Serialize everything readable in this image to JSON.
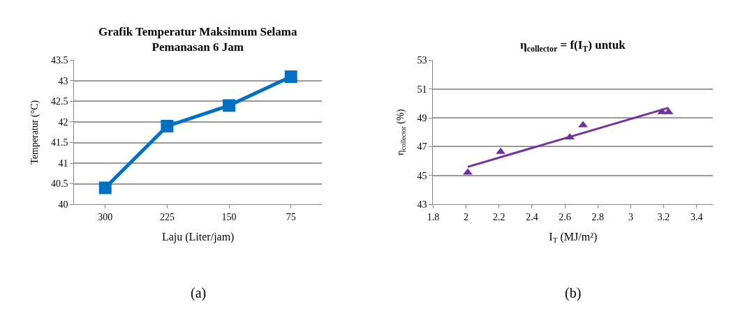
{
  "chart_data": [
    {
      "type": "line",
      "title": "Grafik Temperatur Maksimum Selama\nPemanasan 6 Jam",
      "xlabel": "Laju (Liter/jam)",
      "ylabel": "Temperatur (°C)",
      "categories": [
        "300",
        "225",
        "150",
        "75"
      ],
      "series": [
        {
          "color": "#0070c0",
          "values": [
            40.4,
            41.9,
            42.4,
            43.1
          ]
        }
      ],
      "ylim": [
        40,
        43.5
      ],
      "yticks": [
        40,
        40.5,
        41,
        41.5,
        42,
        42.5,
        43,
        43.5
      ],
      "grid": "y",
      "marker": "square",
      "line_style": "solid",
      "annotations": [
        "(a)"
      ]
    },
    {
      "type": "scatter",
      "title": "η$_{collector}$ = f(I$_{T}$) untuk",
      "xlabel": "I$_{T}$ (MJ/m²)",
      "ylabel": "η$_{collector}$ (%)",
      "series": [
        {
          "type": "scatter",
          "color": "#7030a0",
          "x": [
            2.01,
            2.21,
            2.63,
            2.71,
            3.19,
            3.23
          ],
          "values": [
            45.2,
            46.65,
            47.65,
            48.5,
            49.4,
            49.4
          ],
          "marker": "triangle"
        },
        {
          "type": "line",
          "color": "#7030a0",
          "x": [
            2.01,
            3.23
          ],
          "values": [
            45.6,
            49.7
          ],
          "marker": "none"
        }
      ],
      "xlim": [
        1.8,
        3.5
      ],
      "xticks": [
        1.8,
        2,
        2.2,
        2.4,
        2.6,
        2.8,
        3,
        3.2,
        3.4
      ],
      "ylim": [
        43,
        53
      ],
      "yticks": [
        43,
        45,
        47,
        49,
        51,
        53
      ],
      "grid": "y",
      "annotations": [
        "(b)"
      ]
    }
  ]
}
